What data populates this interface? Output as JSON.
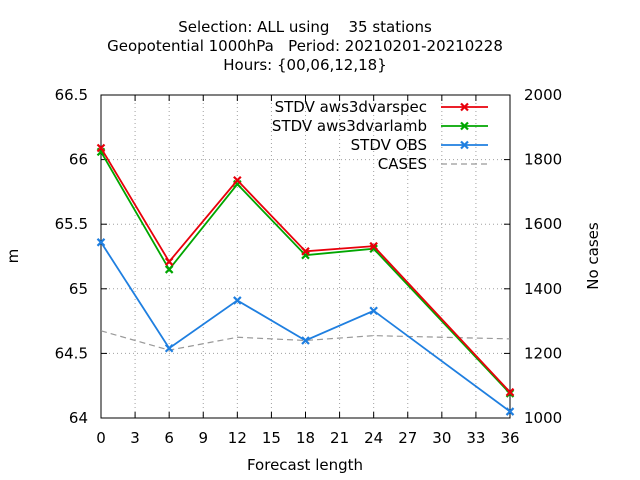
{
  "title_lines": [
    "Selection: ALL using    35 stations",
    "Geopotential 1000hPa   Period: 20210201-20210228",
    "Hours: {00,06,12,18}"
  ],
  "chart_data": {
    "type": "line",
    "xlabel": "Forecast length",
    "ylabel": "m",
    "y2label": "No cases",
    "xlim": [
      0,
      36
    ],
    "ylim": [
      64,
      66.5
    ],
    "y2lim": [
      1000,
      2000
    ],
    "x_ticks": [
      0,
      3,
      6,
      9,
      12,
      15,
      18,
      21,
      24,
      27,
      30,
      33,
      36
    ],
    "y_ticks": [
      64,
      64.5,
      65,
      65.5,
      66,
      66.5
    ],
    "y_tick_labels": [
      "64",
      "64.5",
      "65",
      "65.5",
      "66",
      "66.5"
    ],
    "y2_ticks": [
      1000,
      1200,
      1400,
      1600,
      1800,
      2000
    ],
    "grid": true,
    "legend_position": "top-right",
    "x": [
      0,
      6,
      12,
      18,
      24,
      36
    ],
    "series": [
      {
        "name": "STDV aws3dvarspec",
        "axis": "y",
        "color": "#e8000b",
        "marker": "x",
        "dashed": false,
        "values": [
          66.09,
          65.21,
          65.84,
          65.29,
          65.33,
          64.2
        ]
      },
      {
        "name": "STDV aws3dvarlamb",
        "axis": "y",
        "color": "#00a600",
        "marker": "x",
        "dashed": false,
        "values": [
          66.06,
          65.15,
          65.81,
          65.26,
          65.31,
          64.19
        ]
      },
      {
        "name": "STDV OBS",
        "axis": "y",
        "color": "#1f7fe0",
        "marker": "x",
        "dashed": false,
        "values": [
          65.36,
          64.54,
          64.91,
          64.6,
          64.83,
          64.05
        ]
      },
      {
        "name": "CASES",
        "axis": "y2",
        "color": "#999999",
        "marker": "none",
        "dashed": true,
        "values": [
          1270,
          1210,
          1250,
          1240,
          1255,
          1245
        ]
      }
    ]
  }
}
